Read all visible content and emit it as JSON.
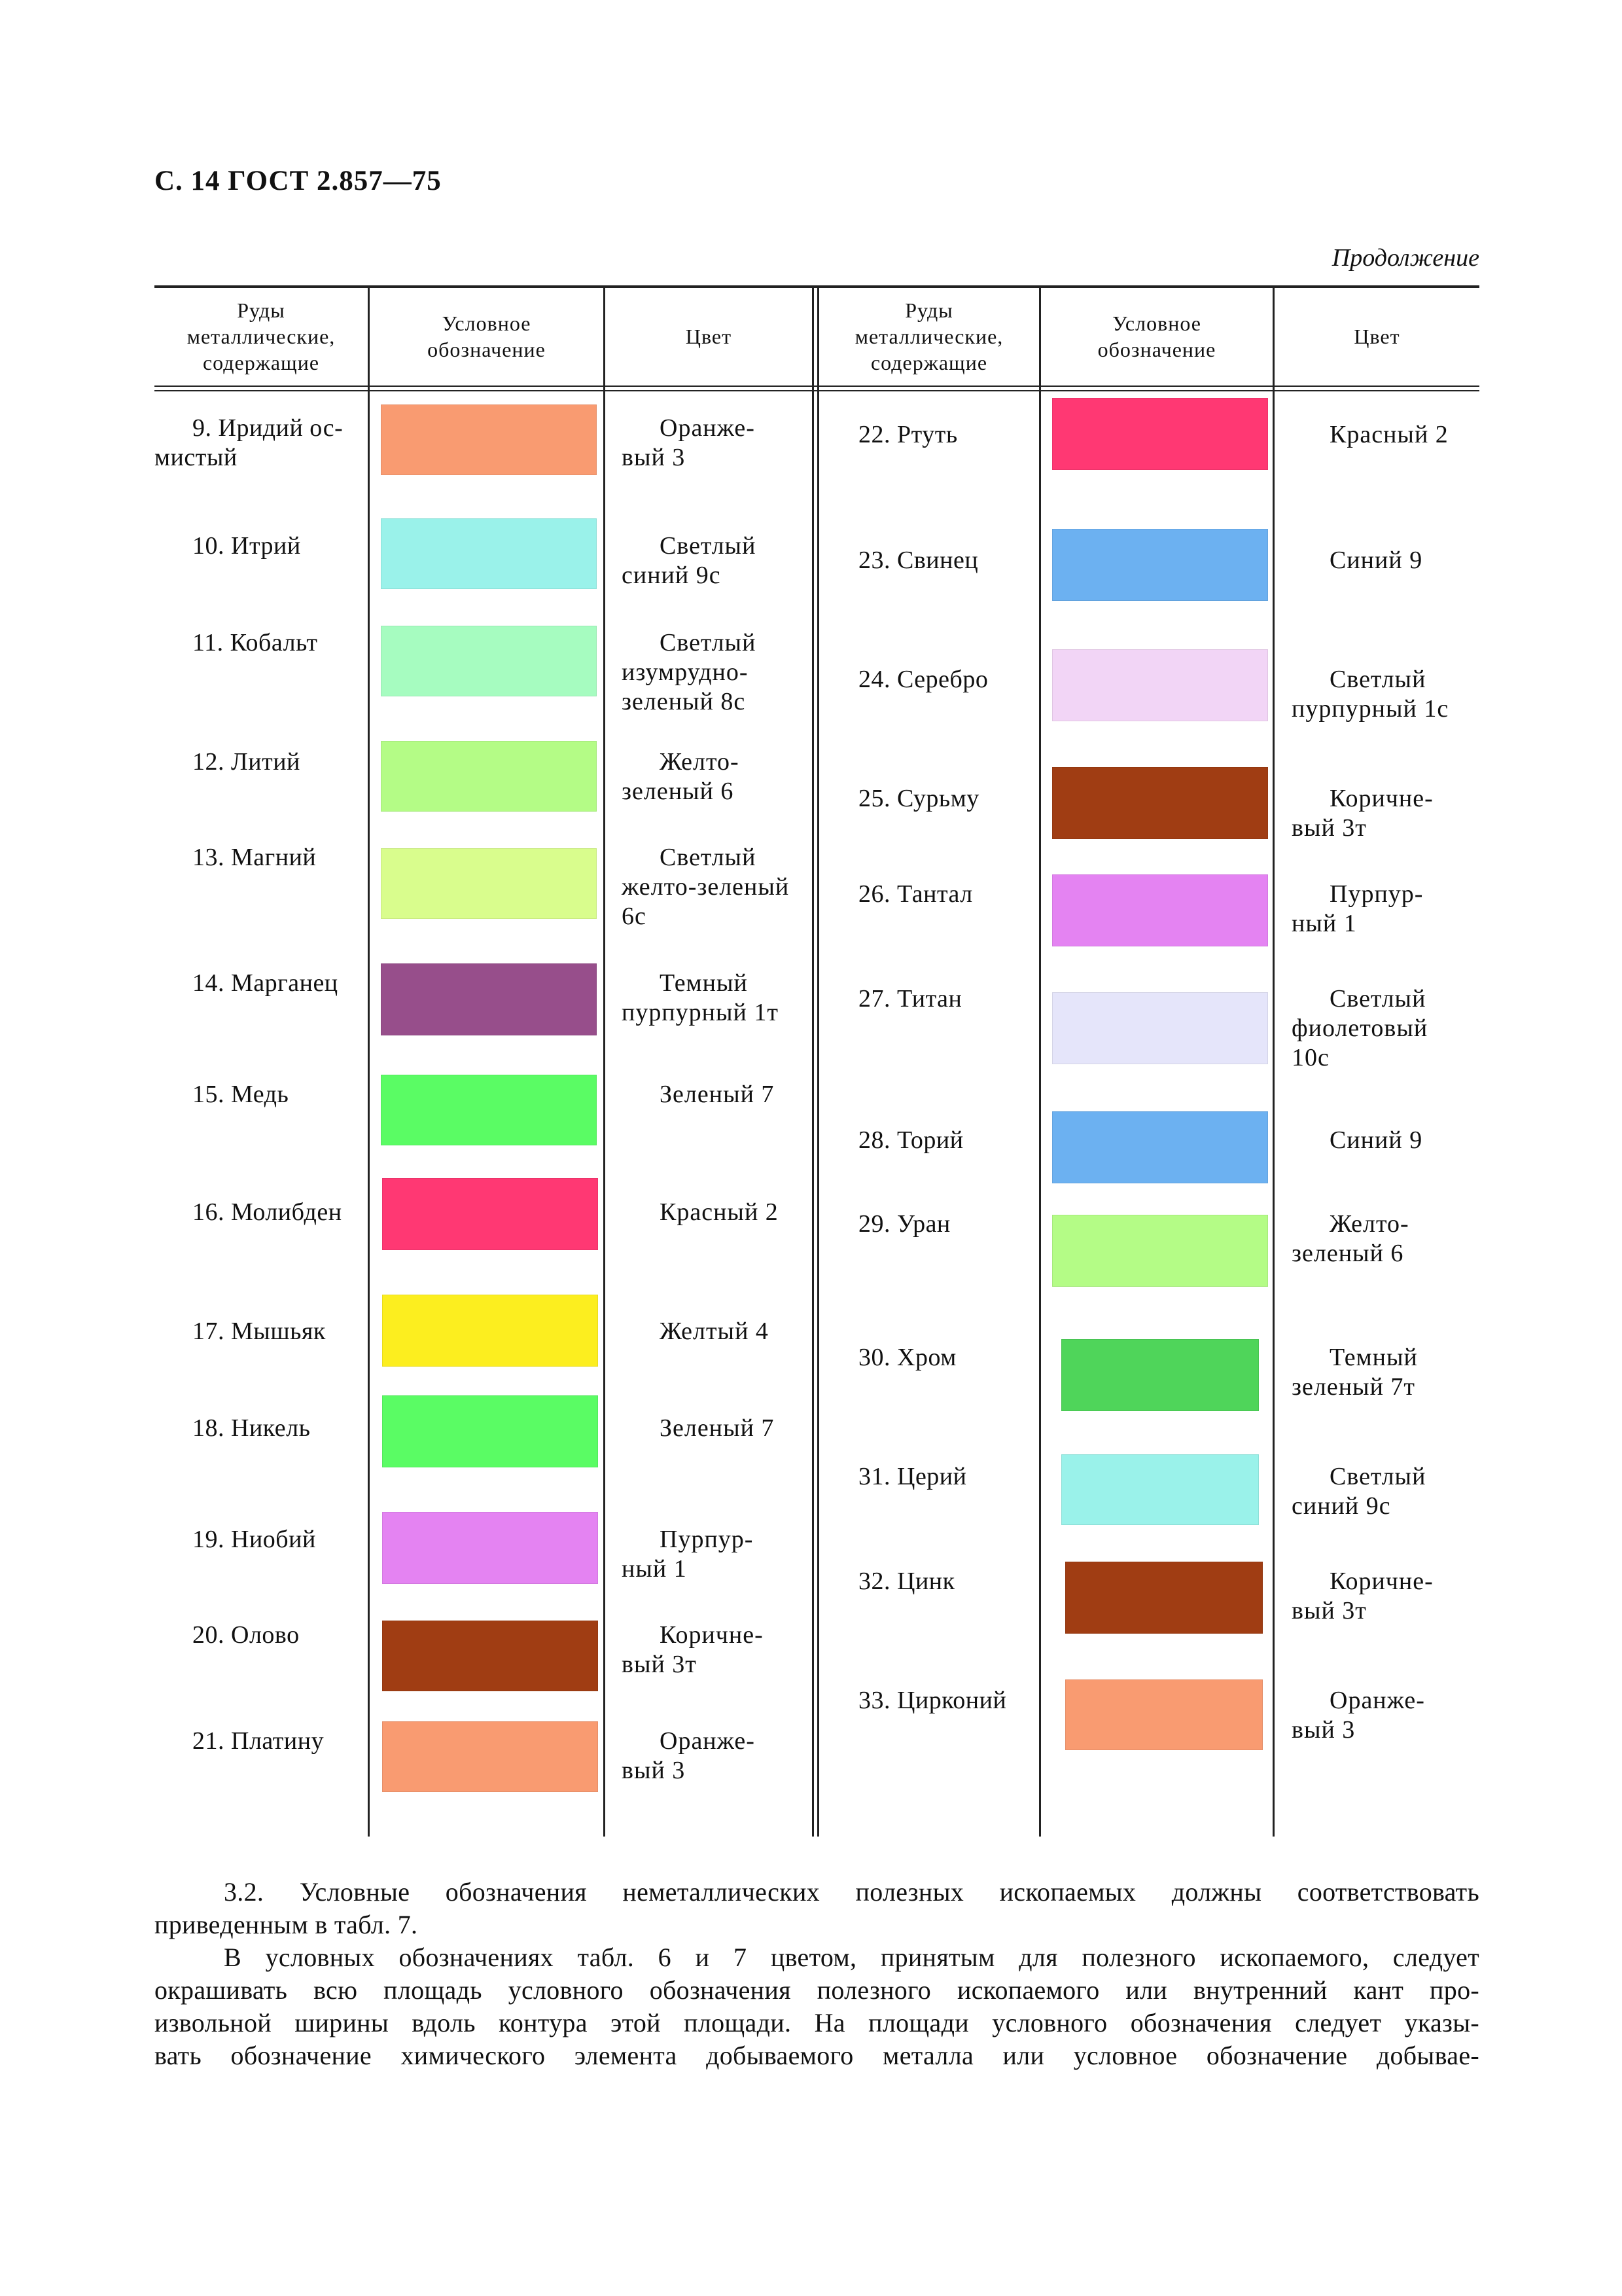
{
  "header": {
    "title": "С. 14 ГОСТ 2.857—75",
    "continuation": "Продолжение"
  },
  "table": {
    "headers": {
      "ores": "Руды\nметаллические,\nсодержащие",
      "symbol": "Условное\nобозначение",
      "color": "Цвет"
    },
    "left": [
      {
        "name": "9. Иридий ос-\nмистый",
        "color_name": "Оранже-\nвый 3",
        "swatch": "#f99b71"
      },
      {
        "name": "10. Итрий",
        "color_name": "Светлый\nсиний 9с",
        "swatch": "#9af2ea"
      },
      {
        "name": "11. Кобальт",
        "color_name": "Светлый\nизумрудно-\nзеленый 8с",
        "swatch": "#a6fcc0"
      },
      {
        "name": "12. Литий",
        "color_name": "Желто-\nзеленый 6",
        "swatch": "#b4fc86"
      },
      {
        "name": "13. Магний",
        "color_name": "Светлый\nжелто-зеленый\n6с",
        "swatch": "#d9fd8d"
      },
      {
        "name": "14. Марганец",
        "color_name": "Темный\nпурпурный 1т",
        "swatch": "#974e8b"
      },
      {
        "name": "15. Медь",
        "color_name": "Зеленый 7",
        "swatch": "#5afc64"
      },
      {
        "name": "16. Молибден",
        "color_name": "Красный 2",
        "swatch": "#ff3873"
      },
      {
        "name": "17. Мышьяк",
        "color_name": "Желтый 4",
        "swatch": "#fcee1f"
      },
      {
        "name": "18. Никель",
        "color_name": "Зеленый 7",
        "swatch": "#5afc64"
      },
      {
        "name": "19. Ниобий",
        "color_name": "Пурпур-\nный 1",
        "swatch": "#e483f2"
      },
      {
        "name": "20. Олово",
        "color_name": "Коричне-\nвый 3т",
        "swatch": "#a03d13"
      },
      {
        "name": "21. Платину",
        "color_name": "Оранже-\nвый 3",
        "swatch": "#f99b71"
      }
    ],
    "right": [
      {
        "name": "22. Ртуть",
        "color_name": "Красный 2",
        "swatch": "#ff3873"
      },
      {
        "name": "23. Свинец",
        "color_name": "Синий 9",
        "swatch": "#6cb1f1"
      },
      {
        "name": "24. Серебро",
        "color_name": "Светлый\nпурпурный 1с",
        "swatch": "#f2d5f6"
      },
      {
        "name": "25. Сурьму",
        "color_name": "Коричне-\nвый 3т",
        "swatch": "#a03d13"
      },
      {
        "name": "26. Тантал",
        "color_name": "Пурпур-\nный 1",
        "swatch": "#e483f2"
      },
      {
        "name": "27. Титан",
        "color_name": "Светлый\nфиолетовый\n10с",
        "swatch": "#e5e5fa"
      },
      {
        "name": "28. Торий",
        "color_name": "Синий 9",
        "swatch": "#6cb1f1"
      },
      {
        "name": "29. Уран",
        "color_name": "Желто-\nзеленый 6",
        "swatch": "#b4fc86"
      },
      {
        "name": "30. Хром",
        "color_name": "Темный\nзеленый 7т",
        "swatch": "#4fd55a"
      },
      {
        "name": "31. Церий",
        "color_name": "Светлый\nсиний 9с",
        "swatch": "#9af2ea"
      },
      {
        "name": "32. Цинк",
        "color_name": "Коричне-\nвый 3т",
        "swatch": "#a03d13"
      },
      {
        "name": "33. Цирконий",
        "color_name": "Оранже-\nвый 3",
        "swatch": "#f99b71"
      }
    ]
  },
  "body": {
    "p1_line1": "3.2. Условные обозначения неметаллических полезных ископаемых должны соответствовать",
    "p1_line2": "приведенным в табл. 7.",
    "p2_line1": "В условных обозначениях табл. 6 и 7 цветом, принятым для полезного ископаемого, следует",
    "p2_line2": "окрашивать всю площадь условного обозначения полезного ископаемого или внутренний кант про-",
    "p2_line3": "извольной ширины вдоль контура этой площади. На площади условного обозначения следует указы-",
    "p2_line4": "вать обозначение химического элемента добываемого металла или условное обозначение добывае-"
  }
}
